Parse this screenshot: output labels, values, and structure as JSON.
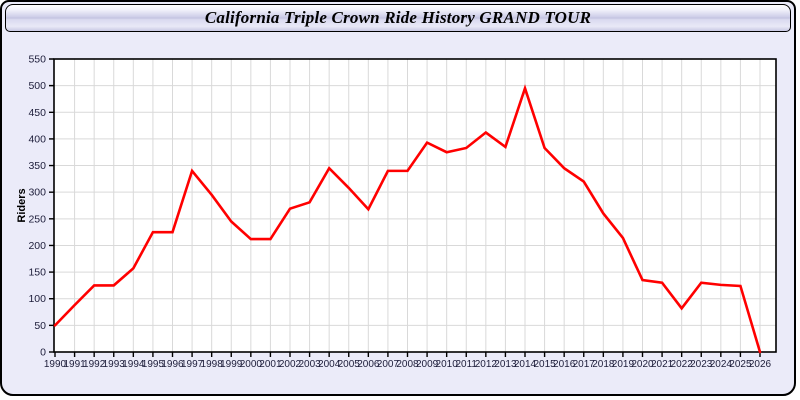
{
  "header": {
    "title": "California Triple Crown Ride History GRAND TOUR"
  },
  "colors": {
    "line": "#ff0000",
    "page_bg": "#ebebf9",
    "plot_bg": "#ffffff",
    "grid": "#d9d9d9",
    "axis": "#000000",
    "tick_text": "#1d1d3a",
    "ylabel_text": "#000000"
  },
  "chart_data": {
    "type": "line",
    "title": "California Triple Crown Ride History GRAND TOUR",
    "xlabel": "",
    "ylabel": "Riders",
    "ylim": [
      0,
      550
    ],
    "ytick_step": 50,
    "grid": true,
    "legend": false,
    "x": [
      1990,
      1991,
      1992,
      1993,
      1994,
      1995,
      1996,
      1997,
      1998,
      1999,
      2000,
      2001,
      2002,
      2003,
      2004,
      2005,
      2006,
      2007,
      2008,
      2009,
      2010,
      2011,
      2012,
      2013,
      2014,
      2015,
      2016,
      2017,
      2018,
      2019,
      2020,
      2021,
      2022,
      2023,
      2024,
      2025,
      2026
    ],
    "series": [
      {
        "name": "Riders",
        "values": [
          50,
          88,
          125,
          125,
          157,
          225,
          225,
          340,
          295,
          245,
          212,
          212,
          269,
          281,
          345,
          308,
          268,
          340,
          340,
          393,
          375,
          383,
          412,
          385,
          495,
          383,
          345,
          320,
          260,
          214,
          135,
          130,
          82,
          130,
          126,
          124,
          0
        ]
      }
    ]
  }
}
